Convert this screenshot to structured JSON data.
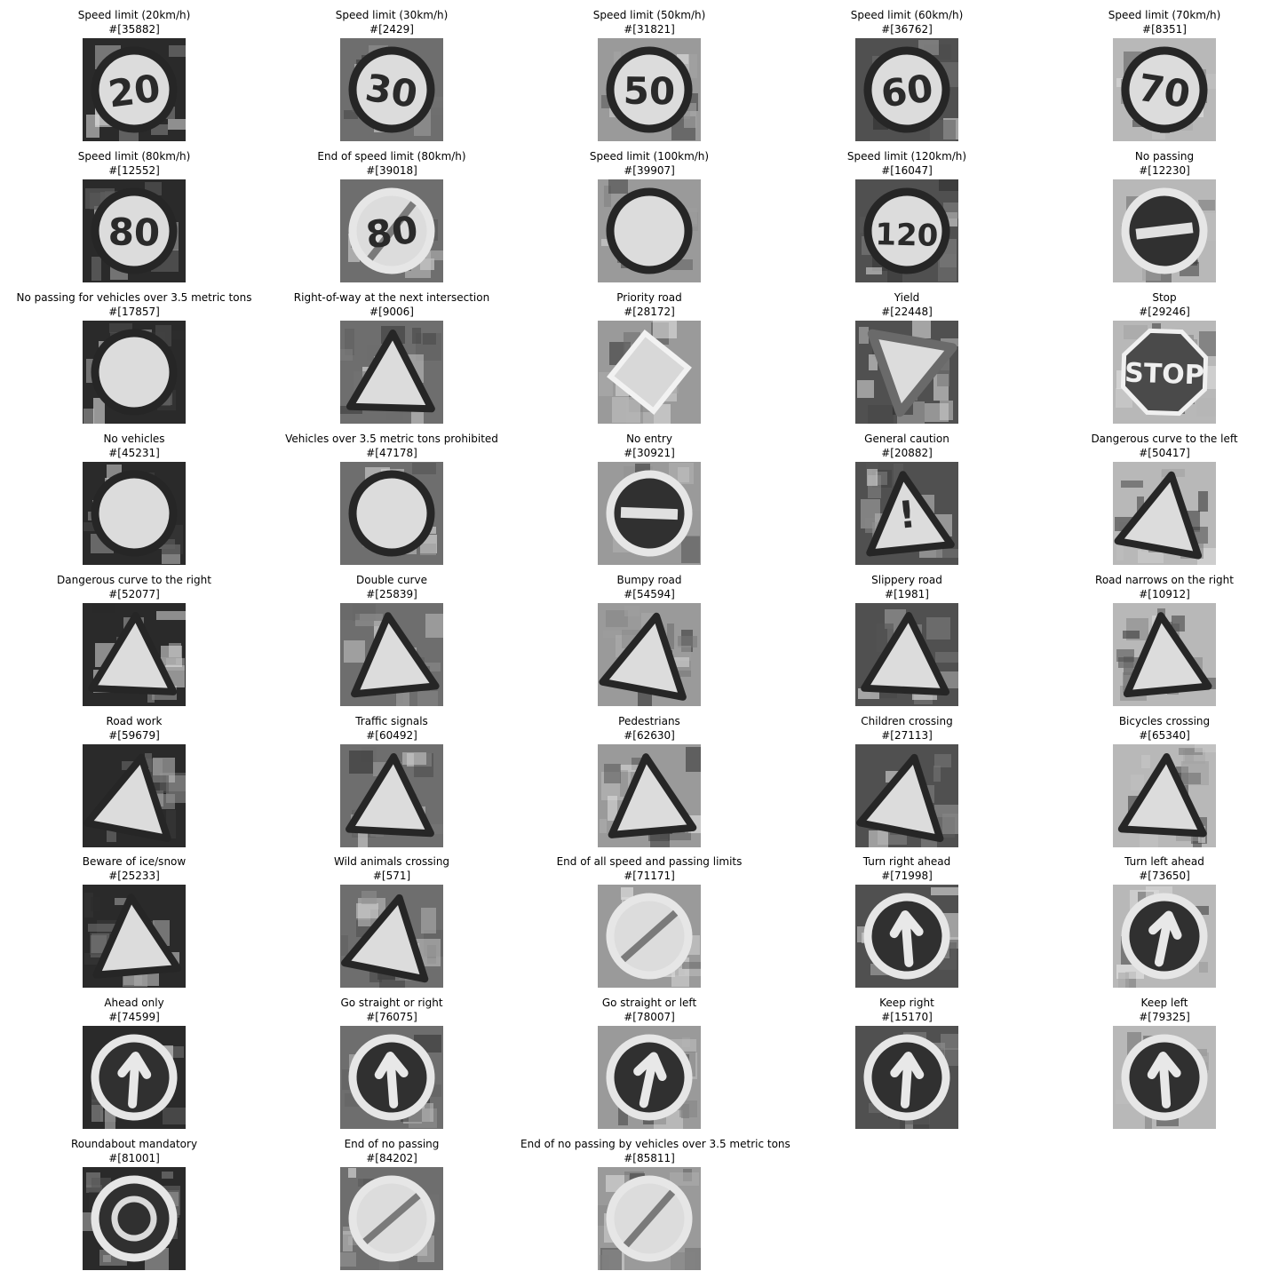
{
  "samples": [
    {
      "title": "Speed limit (20km/h)",
      "index": "#[35882]",
      "glyph": "20",
      "shape": "circle"
    },
    {
      "title": "Speed limit (30km/h)",
      "index": "#[2429]",
      "glyph": "30",
      "shape": "circle"
    },
    {
      "title": "Speed limit (50km/h)",
      "index": "#[31821]",
      "glyph": "50",
      "shape": "circle"
    },
    {
      "title": "Speed limit (60km/h)",
      "index": "#[36762]",
      "glyph": "60",
      "shape": "circle"
    },
    {
      "title": "Speed limit (70km/h)",
      "index": "#[8351]",
      "glyph": "70",
      "shape": "circle"
    },
    {
      "title": "Speed limit (80km/h)",
      "index": "#[12552]",
      "glyph": "80",
      "shape": "circle"
    },
    {
      "title": "End of speed limit (80km/h)",
      "index": "#[39018]",
      "glyph": "80",
      "shape": "end"
    },
    {
      "title": "Speed limit (100km/h)",
      "index": "#[39907]",
      "glyph": "",
      "shape": "circle"
    },
    {
      "title": "Speed limit (120km/h)",
      "index": "#[16047]",
      "glyph": "120",
      "shape": "circle"
    },
    {
      "title": "No passing",
      "index": "#[12230]",
      "glyph": "",
      "shape": "bar"
    },
    {
      "title": "No passing for vehicles over 3.5 metric tons",
      "index": "#[17857]",
      "glyph": "",
      "shape": "circle"
    },
    {
      "title": "Right-of-way at the next intersection",
      "index": "#[9006]",
      "glyph": "",
      "shape": "triangle"
    },
    {
      "title": "Priority road",
      "index": "#[28172]",
      "glyph": "",
      "shape": "diamond"
    },
    {
      "title": "Yield",
      "index": "#[22448]",
      "glyph": "",
      "shape": "yield"
    },
    {
      "title": "Stop",
      "index": "#[29246]",
      "glyph": "STOP",
      "shape": "octagon"
    },
    {
      "title": "No vehicles",
      "index": "#[45231]",
      "glyph": "",
      "shape": "circle"
    },
    {
      "title": "Vehicles over 3.5 metric tons prohibited",
      "index": "#[47178]",
      "glyph": "",
      "shape": "circle"
    },
    {
      "title": "No entry",
      "index": "#[30921]",
      "glyph": "",
      "shape": "bar"
    },
    {
      "title": "General caution",
      "index": "#[20882]",
      "glyph": "!",
      "shape": "triangle"
    },
    {
      "title": "Dangerous curve to the left",
      "index": "#[50417]",
      "glyph": "",
      "shape": "triangle"
    },
    {
      "title": "Dangerous curve to the right",
      "index": "#[52077]",
      "glyph": "",
      "shape": "triangle"
    },
    {
      "title": "Double curve",
      "index": "#[25839]",
      "glyph": "",
      "shape": "triangle"
    },
    {
      "title": "Bumpy road",
      "index": "#[54594]",
      "glyph": "",
      "shape": "triangle"
    },
    {
      "title": "Slippery road",
      "index": "#[1981]",
      "glyph": "",
      "shape": "triangle"
    },
    {
      "title": "Road narrows on the right",
      "index": "#[10912]",
      "glyph": "",
      "shape": "triangle"
    },
    {
      "title": "Road work",
      "index": "#[59679]",
      "glyph": "",
      "shape": "triangle"
    },
    {
      "title": "Traffic signals",
      "index": "#[60492]",
      "glyph": "",
      "shape": "triangle"
    },
    {
      "title": "Pedestrians",
      "index": "#[62630]",
      "glyph": "",
      "shape": "triangle"
    },
    {
      "title": "Children crossing",
      "index": "#[27113]",
      "glyph": "",
      "shape": "triangle"
    },
    {
      "title": "Bicycles crossing",
      "index": "#[65340]",
      "glyph": "",
      "shape": "triangle"
    },
    {
      "title": "Beware of ice/snow",
      "index": "#[25233]",
      "glyph": "",
      "shape": "triangle"
    },
    {
      "title": "Wild animals crossing",
      "index": "#[571]",
      "glyph": "",
      "shape": "triangle"
    },
    {
      "title": "End of all speed and passing limits",
      "index": "#[71171]",
      "glyph": "",
      "shape": "end"
    },
    {
      "title": "Turn right ahead",
      "index": "#[71998]",
      "glyph": "",
      "shape": "arrow"
    },
    {
      "title": "Turn left ahead",
      "index": "#[73650]",
      "glyph": "",
      "shape": "arrow"
    },
    {
      "title": "Ahead only",
      "index": "#[74599]",
      "glyph": "",
      "shape": "arrow"
    },
    {
      "title": "Go straight or right",
      "index": "#[76075]",
      "glyph": "",
      "shape": "arrow"
    },
    {
      "title": "Go straight or left",
      "index": "#[78007]",
      "glyph": "",
      "shape": "arrow"
    },
    {
      "title": "Keep right",
      "index": "#[15170]",
      "glyph": "",
      "shape": "arrow"
    },
    {
      "title": "Keep left",
      "index": "#[79325]",
      "glyph": "",
      "shape": "arrow"
    },
    {
      "title": "Roundabout mandatory",
      "index": "#[81001]",
      "glyph": "",
      "shape": "roundabout"
    },
    {
      "title": "End of no passing",
      "index": "#[84202]",
      "glyph": "",
      "shape": "end"
    },
    {
      "title": "End of no passing by vehicles over 3.5 metric tons",
      "index": "#[85811]",
      "glyph": "",
      "shape": "end"
    }
  ]
}
